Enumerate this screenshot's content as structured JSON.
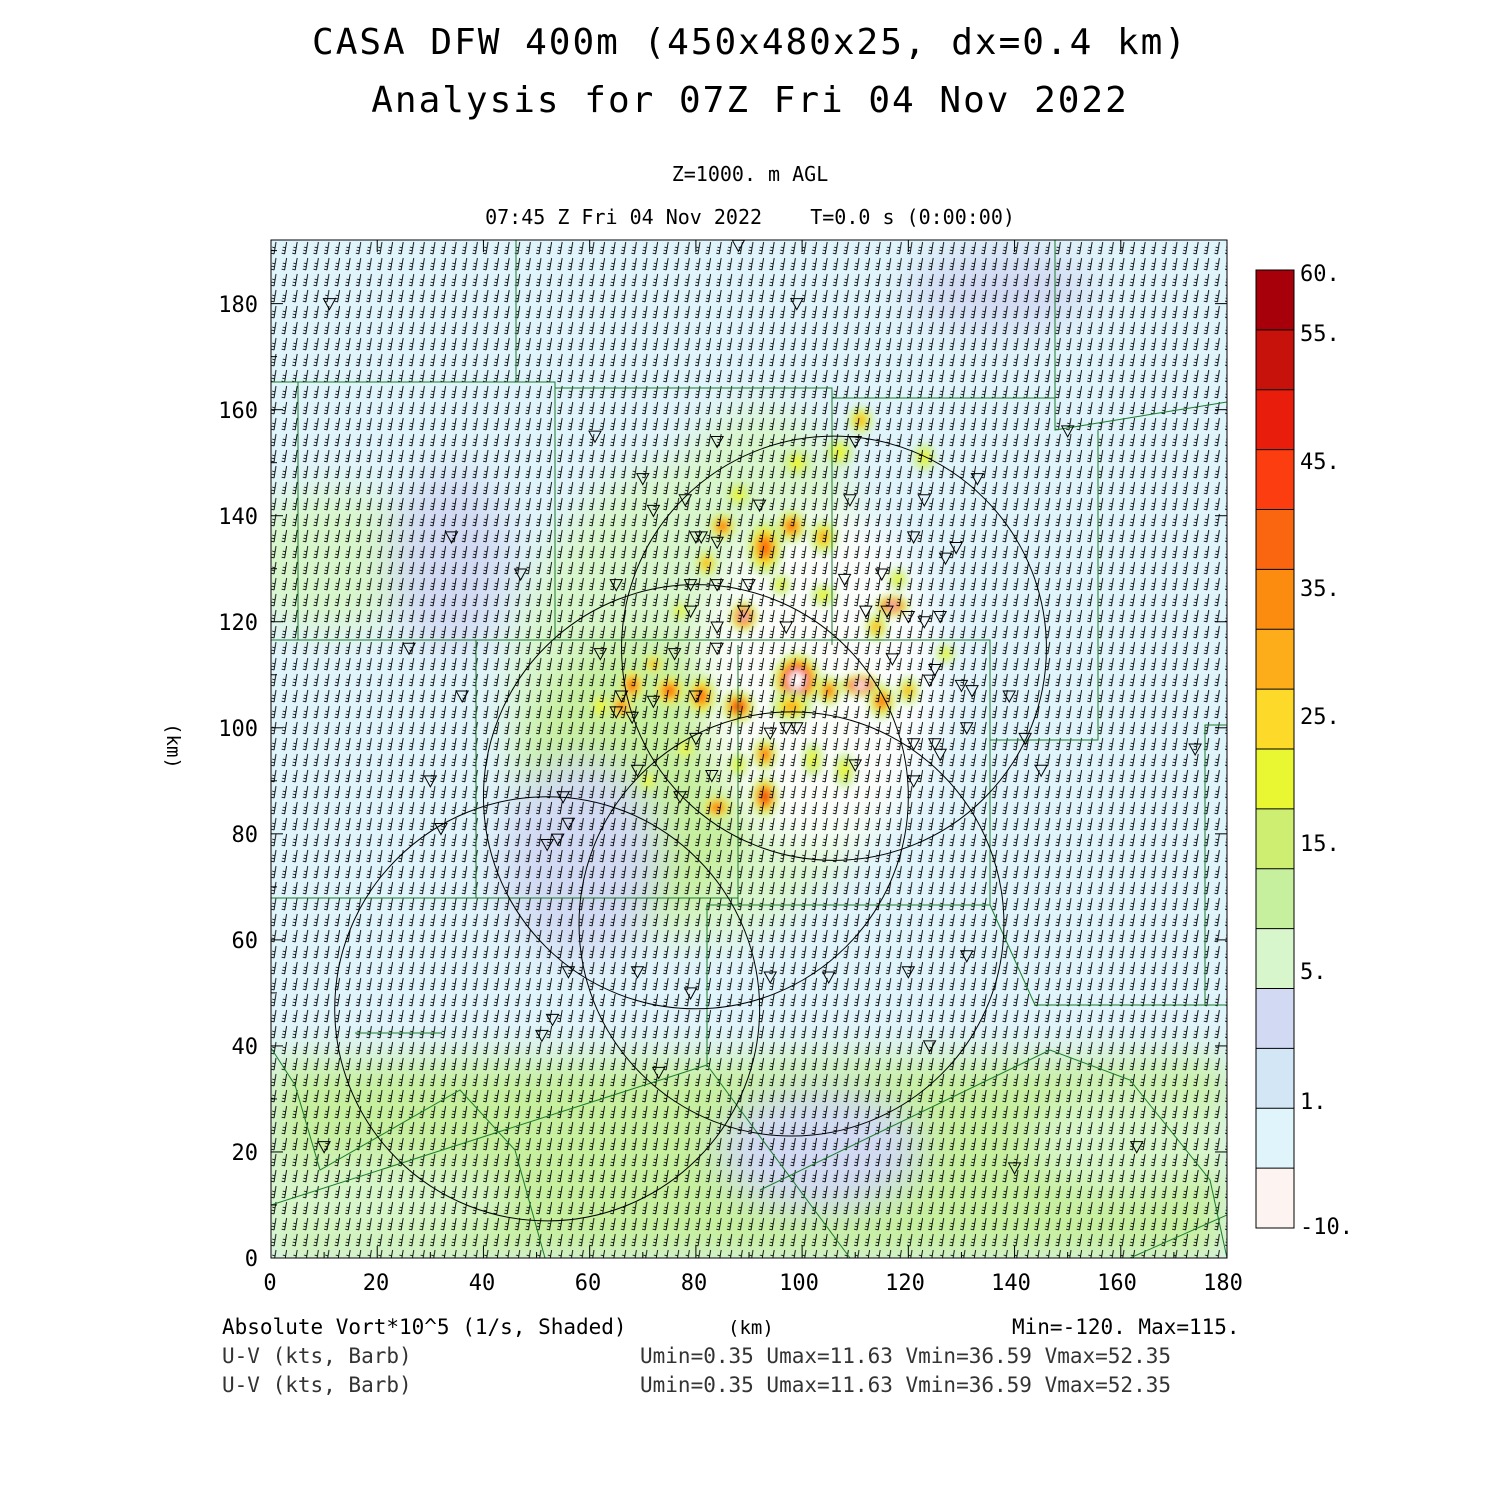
{
  "header": {
    "title_line1": "CASA DFW 400m (450x480x25, dx=0.4 km)",
    "title_line2": "Analysis for 07Z Fri 04 Nov 2022",
    "level": "Z=1000. m AGL",
    "valid_time": "07:45 Z Fri 04 Nov 2022    T=0.0 s (0:00:00)"
  },
  "axes": {
    "x_ticks": [
      "0",
      "20",
      "40",
      "60",
      "80",
      "100",
      "120",
      "140",
      "160",
      "180"
    ],
    "y_ticks": [
      "0",
      "20",
      "40",
      "60",
      "80",
      "100",
      "120",
      "140",
      "160",
      "180"
    ],
    "x_unit": "(km)",
    "y_unit": "(km)",
    "x_range": [
      0,
      180
    ],
    "y_range": [
      0,
      192
    ]
  },
  "colorbar": {
    "labels": [
      "60.",
      "55.",
      "45.",
      "35.",
      "25.",
      "15.",
      "5.",
      "1.",
      "-10."
    ],
    "colors": [
      "#fdf3f0",
      "#e0f4fb",
      "#d2e6f6",
      "#d2daf3",
      "#d8f6cb",
      "#c6ef9e",
      "#cdee70",
      "#e9f632",
      "#fdd92a",
      "#fdad1a",
      "#fb8c10",
      "#fa6610",
      "#fb3d0f",
      "#e81d0c",
      "#c7110b",
      "#a7000a"
    ]
  },
  "footer": {
    "field": "Absolute Vort*10^5 (1/s, Shaded)",
    "x_unit": "(km)",
    "minmax": "Min=-120. Max=115.",
    "barb1": "U-V (kts, Barb)",
    "barb2": "U-V (kts, Barb)",
    "stats1": "Umin=0.35 Umax=11.63 Vmin=36.59 Vmax=52.35",
    "stats2": "Umin=0.35 Umax=11.63 Vmin=36.59 Vmax=52.35"
  },
  "radar_rings": [
    {
      "x": 106,
      "y": 115,
      "r": 40
    },
    {
      "x": 80,
      "y": 87,
      "r": 40
    },
    {
      "x": 98,
      "y": 63,
      "r": 40
    },
    {
      "x": 52,
      "y": 47,
      "r": 40
    }
  ],
  "stations": [
    [
      88,
      191
    ],
    [
      11,
      180
    ],
    [
      99,
      180
    ],
    [
      61,
      155
    ],
    [
      84,
      154
    ],
    [
      110,
      154
    ],
    [
      150,
      156
    ],
    [
      70,
      147
    ],
    [
      72,
      141
    ],
    [
      78,
      143
    ],
    [
      92,
      142
    ],
    [
      109,
      143
    ],
    [
      123,
      143
    ],
    [
      133,
      147
    ],
    [
      34,
      136
    ],
    [
      80,
      136
    ],
    [
      84,
      135
    ],
    [
      81,
      136
    ],
    [
      121,
      136
    ],
    [
      127,
      132
    ],
    [
      129,
      134
    ],
    [
      47,
      129
    ],
    [
      65,
      127
    ],
    [
      79,
      127
    ],
    [
      84,
      127
    ],
    [
      90,
      127
    ],
    [
      108,
      128
    ],
    [
      115,
      129
    ],
    [
      79,
      122
    ],
    [
      89,
      122
    ],
    [
      112,
      122
    ],
    [
      116,
      122
    ],
    [
      120,
      121
    ],
    [
      126,
      121
    ],
    [
      123,
      120
    ],
    [
      84,
      119
    ],
    [
      97,
      119
    ],
    [
      26,
      115
    ],
    [
      62,
      114
    ],
    [
      76,
      114
    ],
    [
      84,
      115
    ],
    [
      117,
      113
    ],
    [
      125,
      111
    ],
    [
      130,
      108
    ],
    [
      132,
      107
    ],
    [
      36,
      106
    ],
    [
      66,
      106
    ],
    [
      72,
      105
    ],
    [
      80,
      106
    ],
    [
      124,
      109
    ],
    [
      139,
      106
    ],
    [
      65,
      103
    ],
    [
      68,
      102
    ],
    [
      80,
      98
    ],
    [
      94,
      99
    ],
    [
      97,
      100
    ],
    [
      99,
      100
    ],
    [
      121,
      97
    ],
    [
      125,
      97
    ],
    [
      126,
      95
    ],
    [
      131,
      100
    ],
    [
      142,
      98
    ],
    [
      174,
      96
    ],
    [
      69,
      92
    ],
    [
      83,
      91
    ],
    [
      110,
      93
    ],
    [
      121,
      90
    ],
    [
      145,
      92
    ],
    [
      30,
      90
    ],
    [
      77,
      87
    ],
    [
      55,
      87
    ],
    [
      56,
      82
    ],
    [
      54,
      79
    ],
    [
      52,
      78
    ],
    [
      32,
      81
    ],
    [
      56,
      54
    ],
    [
      69,
      54
    ],
    [
      79,
      50
    ],
    [
      94,
      53
    ],
    [
      105,
      53
    ],
    [
      120,
      54
    ],
    [
      131,
      57
    ],
    [
      53,
      45
    ],
    [
      51,
      42
    ],
    [
      124,
      40
    ],
    [
      73,
      35
    ],
    [
      10,
      21
    ],
    [
      140,
      17
    ],
    [
      163,
      21
    ]
  ],
  "vort_blobs": [
    {
      "x": 99,
      "y": 109,
      "rx": 3.5,
      "ry": 4,
      "v": 70
    },
    {
      "x": 111,
      "y": 108,
      "rx": 3,
      "ry": 1.6,
      "v": 70
    },
    {
      "x": 117,
      "y": 123,
      "rx": 2.5,
      "ry": 1.6,
      "v": 62
    },
    {
      "x": 89,
      "y": 121,
      "rx": 2,
      "ry": 2.2,
      "v": 62
    },
    {
      "x": 93,
      "y": 134,
      "rx": 2.6,
      "ry": 4,
      "v": 48
    },
    {
      "x": 98,
      "y": 138,
      "rx": 2.2,
      "ry": 2.4,
      "v": 44
    },
    {
      "x": 85,
      "y": 138,
      "rx": 2,
      "ry": 2,
      "v": 40
    },
    {
      "x": 104,
      "y": 136,
      "rx": 2,
      "ry": 2.5,
      "v": 36
    },
    {
      "x": 98,
      "y": 104,
      "rx": 3,
      "ry": 2.2,
      "v": 38
    },
    {
      "x": 88,
      "y": 104,
      "rx": 2.4,
      "ry": 2.4,
      "v": 50
    },
    {
      "x": 81,
      "y": 106,
      "rx": 2.2,
      "ry": 3,
      "v": 40
    },
    {
      "x": 75,
      "y": 107,
      "rx": 2.5,
      "ry": 2.5,
      "v": 42
    },
    {
      "x": 68,
      "y": 108,
      "rx": 2,
      "ry": 2.6,
      "v": 48
    },
    {
      "x": 66,
      "y": 104,
      "rx": 1.8,
      "ry": 2,
      "v": 40
    },
    {
      "x": 72,
      "y": 112,
      "rx": 1.6,
      "ry": 1.6,
      "v": 32
    },
    {
      "x": 115,
      "y": 105,
      "rx": 2,
      "ry": 2.5,
      "v": 44
    },
    {
      "x": 105,
      "y": 107,
      "rx": 1.8,
      "ry": 2.2,
      "v": 40
    },
    {
      "x": 93,
      "y": 87,
      "rx": 2,
      "ry": 3,
      "v": 50
    },
    {
      "x": 84,
      "y": 85,
      "rx": 2.4,
      "ry": 1.8,
      "v": 46
    },
    {
      "x": 93,
      "y": 95,
      "rx": 1.8,
      "ry": 2.4,
      "v": 42
    },
    {
      "x": 102,
      "y": 94,
      "rx": 1.5,
      "ry": 2.5,
      "v": 28
    },
    {
      "x": 108,
      "y": 92,
      "rx": 1.5,
      "ry": 2.5,
      "v": 26
    },
    {
      "x": 111,
      "y": 158,
      "rx": 1.8,
      "ry": 2,
      "v": 36
    },
    {
      "x": 99,
      "y": 150,
      "rx": 2,
      "ry": 2,
      "v": 26
    },
    {
      "x": 107,
      "y": 152,
      "rx": 2,
      "ry": 2,
      "v": 24
    },
    {
      "x": 123,
      "y": 151,
      "rx": 1.6,
      "ry": 2,
      "v": 26
    },
    {
      "x": 82,
      "y": 131,
      "rx": 1.6,
      "ry": 2,
      "v": 30
    },
    {
      "x": 88,
      "y": 144,
      "rx": 1.8,
      "ry": 1.8,
      "v": 26
    },
    {
      "x": 104,
      "y": 125,
      "rx": 1.8,
      "ry": 1.6,
      "v": 28
    },
    {
      "x": 114,
      "y": 119,
      "rx": 1.6,
      "ry": 2,
      "v": 36
    },
    {
      "x": 120,
      "y": 107,
      "rx": 1.6,
      "ry": 2,
      "v": 30
    },
    {
      "x": 78,
      "y": 96,
      "rx": 1.6,
      "ry": 1.8,
      "v": 26
    },
    {
      "x": 71,
      "y": 90,
      "rx": 1.4,
      "ry": 1.6,
      "v": 24
    },
    {
      "x": 62,
      "y": 104,
      "rx": 1.6,
      "ry": 2.4,
      "v": 24
    },
    {
      "x": 77,
      "y": 122,
      "rx": 1.4,
      "ry": 1.4,
      "v": 24
    },
    {
      "x": 96,
      "y": 127,
      "rx": 1.4,
      "ry": 1.6,
      "v": 26
    },
    {
      "x": 118,
      "y": 128,
      "rx": 1.4,
      "ry": 1.6,
      "v": 24
    },
    {
      "x": 127,
      "y": 114,
      "rx": 1.4,
      "ry": 1.4,
      "v": 22
    },
    {
      "x": 88,
      "y": 93,
      "rx": 1.4,
      "ry": 1.8,
      "v": 22
    }
  ]
}
